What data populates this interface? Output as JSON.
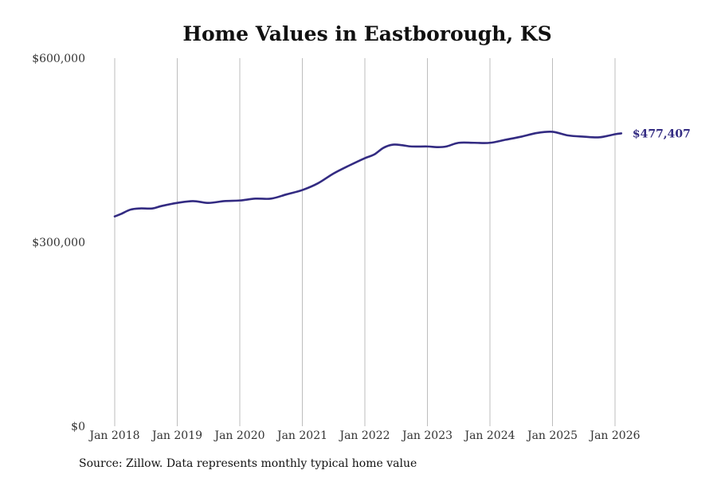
{
  "chart_data": {
    "type": "line",
    "title": "Home Values in Eastborough, KS",
    "xlabel": "",
    "ylabel": "",
    "ylim": [
      0,
      600000
    ],
    "y_ticks": [
      {
        "value": 0,
        "label": "$0"
      },
      {
        "value": 300000,
        "label": "$300,000"
      },
      {
        "value": 600000,
        "label": "$600,000"
      }
    ],
    "x_ticks": [
      {
        "value": 2018.0,
        "label": "Jan 2018"
      },
      {
        "value": 2019.0,
        "label": "Jan 2019"
      },
      {
        "value": 2020.0,
        "label": "Jan 2020"
      },
      {
        "value": 2021.0,
        "label": "Jan 2021"
      },
      {
        "value": 2022.0,
        "label": "Jan 2022"
      },
      {
        "value": 2023.0,
        "label": "Jan 2023"
      },
      {
        "value": 2024.0,
        "label": "Jan 2024"
      },
      {
        "value": 2025.0,
        "label": "Jan 2025"
      },
      {
        "value": 2026.0,
        "label": "Jan 2026"
      }
    ],
    "xlim": [
      2018.0,
      2026.1
    ],
    "grid": "vertical",
    "series": [
      {
        "name": "Typical home value",
        "color": "#332b82",
        "points": [
          [
            2018.0,
            342000
          ],
          [
            2018.1,
            346000
          ],
          [
            2018.25,
            353000
          ],
          [
            2018.4,
            355000
          ],
          [
            2018.6,
            355000
          ],
          [
            2018.75,
            359000
          ],
          [
            2019.0,
            364000
          ],
          [
            2019.25,
            367000
          ],
          [
            2019.5,
            364000
          ],
          [
            2019.75,
            367000
          ],
          [
            2020.0,
            368000
          ],
          [
            2020.25,
            371000
          ],
          [
            2020.5,
            371000
          ],
          [
            2020.75,
            378000
          ],
          [
            2021.0,
            385000
          ],
          [
            2021.25,
            396000
          ],
          [
            2021.5,
            412000
          ],
          [
            2021.75,
            425000
          ],
          [
            2022.0,
            437000
          ],
          [
            2022.15,
            443000
          ],
          [
            2022.3,
            454000
          ],
          [
            2022.45,
            459000
          ],
          [
            2022.6,
            458000
          ],
          [
            2022.75,
            456000
          ],
          [
            2023.0,
            456000
          ],
          [
            2023.15,
            455000
          ],
          [
            2023.3,
            456000
          ],
          [
            2023.5,
            462000
          ],
          [
            2023.75,
            462000
          ],
          [
            2024.0,
            462000
          ],
          [
            2024.25,
            467000
          ],
          [
            2024.5,
            472000
          ],
          [
            2024.75,
            478000
          ],
          [
            2025.0,
            480000
          ],
          [
            2025.25,
            474000
          ],
          [
            2025.5,
            472000
          ],
          [
            2025.75,
            471000
          ],
          [
            2026.0,
            476000
          ],
          [
            2026.1,
            477407
          ]
        ],
        "end_label": "$477,407"
      }
    ],
    "source": "Source: Zillow. Data represents monthly typical home value"
  }
}
